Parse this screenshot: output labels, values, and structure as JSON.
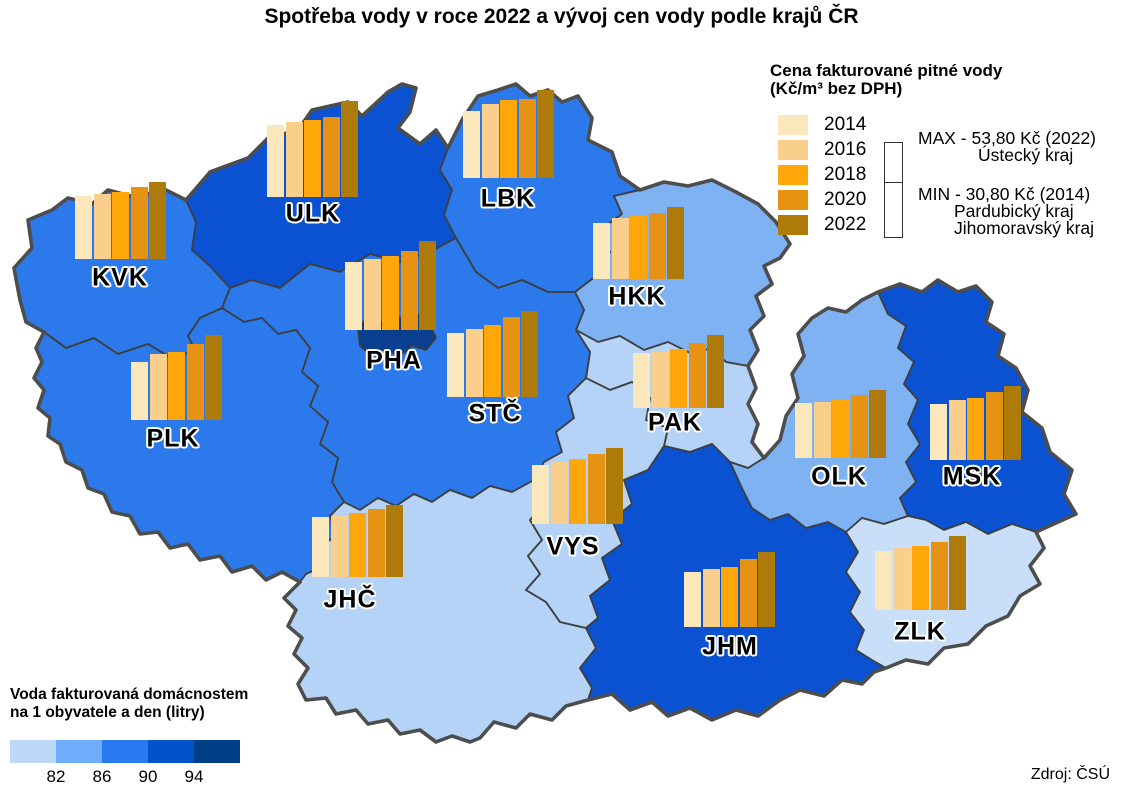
{
  "title": "Spotřeba vody v roce 2022 a vývoj cen vody podle krajů ČR",
  "source_label": "Zdroj: ČSÚ",
  "price_legend": {
    "title_line1": "Cena fakturované pitné vody",
    "title_line2": "(Kč/m³ bez DPH)",
    "years": [
      {
        "label": "2014",
        "color": "#FAE7BB"
      },
      {
        "label": "2016",
        "color": "#FACF8B"
      },
      {
        "label": "2018",
        "color": "#FFA60A"
      },
      {
        "label": "2020",
        "color": "#E69212"
      },
      {
        "label": "2022",
        "color": "#AE7A0A"
      }
    ],
    "max_line1": "MAX - 53,80 Kč (2022)",
    "max_line2": "Ústecký kraj",
    "min_line1": "MIN - 30,80 Kč (2014)",
    "min_line2": "Pardubický kraj",
    "min_line3": "Jihomoravský kraj"
  },
  "consumption_legend": {
    "title_line1": "Voda fakturovaná domácnostem",
    "title_line2": "na 1 obyvatele a den (litry)",
    "colors": [
      "#BDD8F8",
      "#6FACFA",
      "#2979F1",
      "#0351CB",
      "#003E88"
    ],
    "ticks": [
      "82",
      "86",
      "90",
      "94"
    ]
  },
  "chart_data": {
    "type": "choropleth-map-with-bar-charts",
    "title": "Spotřeba vody v roce 2022 a vývoj cen vody podle krajů ČR",
    "bar_series_years": [
      2014,
      2016,
      2018,
      2020,
      2022
    ],
    "bar_value_unit": "Kč/m³ bez DPH",
    "bar_value_range_kc": [
      30.8,
      53.8
    ],
    "choropleth_variable": "Voda fakturovaná domácnostem na 1 obyvatele a den (litry)",
    "choropleth_breaks": [
      82,
      86,
      90,
      94
    ],
    "annotations": {
      "max": "MAX - 53,80 Kč (2022) Ústecký kraj",
      "min": "MIN - 30,80 Kč (2014) Pardubický kraj, Jihomoravský kraj"
    },
    "regions": [
      {
        "code": "KVK",
        "label": "KVK",
        "prices": [
          35.1,
          36.4,
          37.4,
          40.2,
          43.3
        ],
        "consumption_class": "86–90",
        "region_color": "#2C79EC"
      },
      {
        "code": "ULK",
        "label": "ULK",
        "prices": [
          40.2,
          41.8,
          43.0,
          45.0,
          53.8
        ],
        "consumption_class": "90–94",
        "region_color": "#0A52D2"
      },
      {
        "code": "LBK",
        "label": "LBK",
        "prices": [
          37.5,
          41.5,
          43.7,
          44.4,
          49.5
        ],
        "consumption_class": "86–90",
        "region_color": "#2C79EC"
      },
      {
        "code": "HKK",
        "label": "HKK",
        "prices": [
          31.4,
          34.2,
          35.1,
          37.1,
          40.2
        ],
        "consumption_class": "82–86",
        "region_color": "#7EB2F3"
      },
      {
        "code": "PAK",
        "label": "PAK",
        "prices": [
          30.8,
          31.3,
          33.2,
          36.2,
          41.1
        ],
        "consumption_class": "do 82",
        "region_color": "#B5D2F7"
      },
      {
        "code": "PHA",
        "label": "PHA",
        "prices": [
          38.1,
          39.8,
          41.5,
          44.5,
          50.1
        ],
        "consumption_class": "nad 94",
        "region_color": "#093F8E"
      },
      {
        "code": "STC",
        "label": "STČ",
        "prices": [
          35.9,
          38.1,
          40.3,
          44.8,
          48.4
        ],
        "consumption_class": "86–90",
        "region_color": "#2C79EC"
      },
      {
        "code": "PLK",
        "label": "PLK",
        "prices": [
          32.7,
          36.8,
          38.3,
          42.7,
          47.4
        ],
        "consumption_class": "86–90",
        "region_color": "#2C79EC"
      },
      {
        "code": "JHC",
        "label": "JHČ",
        "prices": [
          33.6,
          34.2,
          35.9,
          38.1,
          40.5
        ],
        "consumption_class": "do 82",
        "region_color": "#B5D2F7"
      },
      {
        "code": "VYS",
        "label": "VYS",
        "prices": [
          33.2,
          34.9,
          36.6,
          39.2,
          42.6
        ],
        "consumption_class": "do 82",
        "region_color": "#B5D2F7"
      },
      {
        "code": "JHM",
        "label": "JHM",
        "prices": [
          30.8,
          32.5,
          33.8,
          37.9,
          41.8
        ],
        "consumption_class": "90–94",
        "region_color": "#0A52D2"
      },
      {
        "code": "OLK",
        "label": "OLK",
        "prices": [
          30.9,
          31.5,
          32.3,
          35.3,
          38.3
        ],
        "consumption_class": "82–86",
        "region_color": "#7EB2F3"
      },
      {
        "code": "MSK",
        "label": "MSK",
        "prices": [
          31.4,
          33.6,
          34.6,
          38.3,
          41.6
        ],
        "consumption_class": "90–94",
        "region_color": "#0A52D2"
      },
      {
        "code": "ZLK",
        "label": "ZLK",
        "prices": [
          33.2,
          34.9,
          35.9,
          37.9,
          41.5
        ],
        "consumption_class": "do 82",
        "region_color": "#C9DFF9"
      }
    ]
  }
}
